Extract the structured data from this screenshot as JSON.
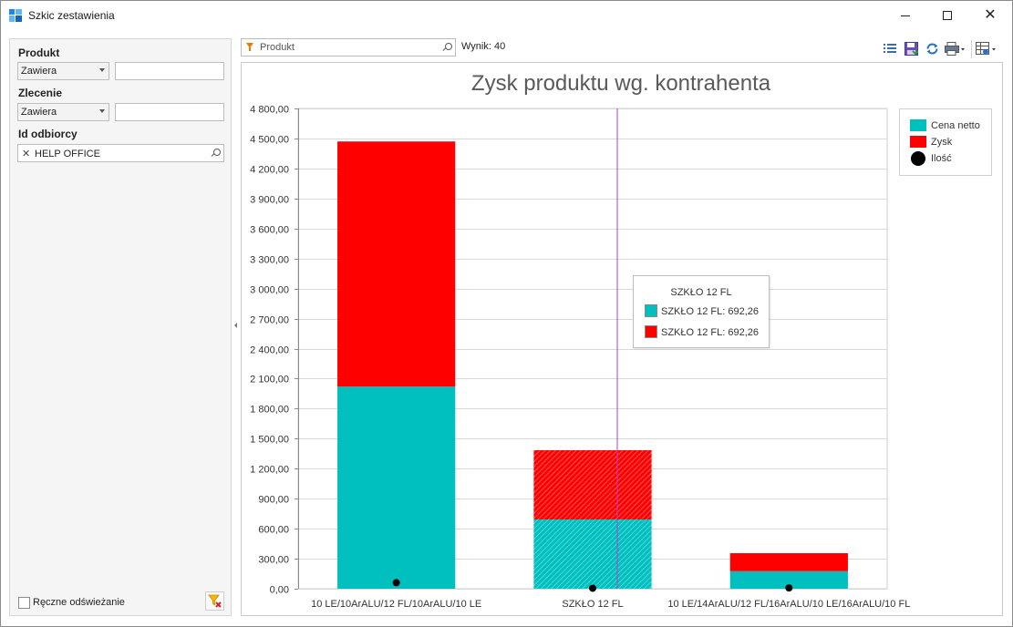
{
  "window": {
    "title": "Szkic zestawienia"
  },
  "filters": {
    "produkt": {
      "label": "Produkt",
      "operator": "Zawiera",
      "value": ""
    },
    "zlecenie": {
      "label": "Zlecenie",
      "operator": "Zawiera",
      "value": ""
    },
    "id_odbiorcy": {
      "label": "Id odbiorcy",
      "token": "HELP OFFICE"
    },
    "manual_refresh": {
      "label": "Ręczne odświeżanie",
      "checked": false
    }
  },
  "toolbar": {
    "search_placeholder": "Produkt",
    "result_count": "Wynik: 40"
  },
  "colors": {
    "cena_netto": "#00BFBF",
    "zysk": "#FF0000",
    "ilosc": "#000000",
    "crosshair": "#B040C8"
  },
  "tooltip": {
    "title": "SZKŁO 12 FL",
    "rows": [
      "SZKŁO 12 FL: 692,26",
      "SZKŁO 12 FL: 692,26"
    ]
  },
  "chart_data": {
    "type": "bar",
    "stacked": true,
    "title": "Zysk produktu wg. kontrahenta",
    "categories": [
      "10 LE/10ArALU/12 FL/10ArALU/10 LE",
      "SZKŁO 12 FL",
      "10 LE/14ArALU/12 FL/16ArALU/10 LE/16ArALU/10 FL"
    ],
    "series": [
      {
        "name": "Cena netto",
        "values": [
          2020,
          692.26,
          175
        ]
      },
      {
        "name": "Zysk",
        "values": [
          2450,
          692.26,
          180
        ]
      },
      {
        "name": "Ilość",
        "type": "scatter",
        "values": [
          60,
          5,
          8
        ]
      }
    ],
    "ylim": [
      0,
      4800
    ],
    "yticks": [
      "0,00",
      "300,00",
      "600,00",
      "900,00",
      "1 200,00",
      "1 500,00",
      "1 800,00",
      "2 100,00",
      "2 400,00",
      "2 700,00",
      "3 000,00",
      "3 300,00",
      "3 600,00",
      "3 900,00",
      "4 200,00",
      "4 500,00",
      "4 800,00"
    ],
    "legend": "top-right",
    "grid": true
  }
}
